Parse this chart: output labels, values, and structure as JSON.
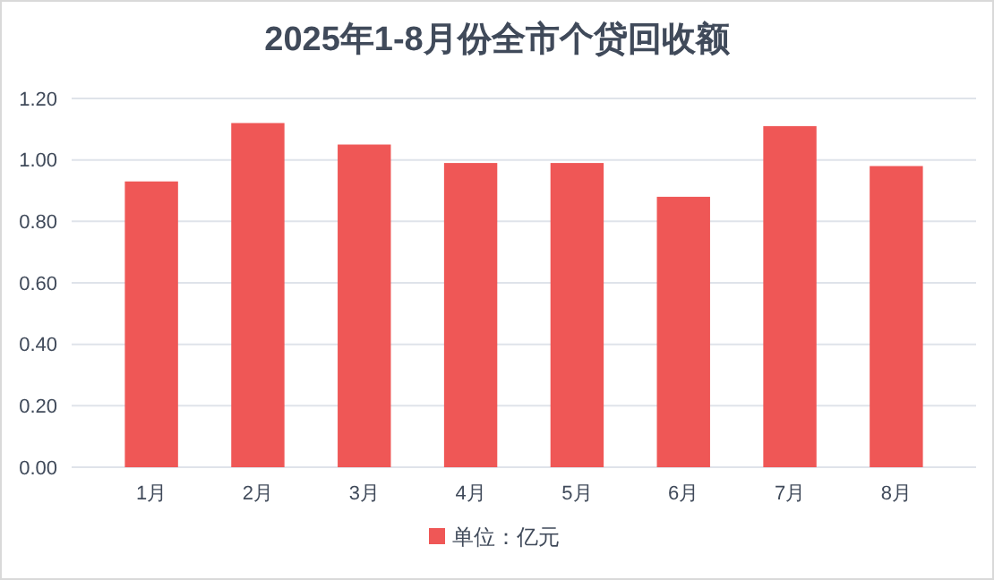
{
  "chart_data": {
    "type": "bar",
    "title": "2025年1-8月份全市个贷回收额",
    "categories": [
      "1月",
      "2月",
      "3月",
      "4月",
      "5月",
      "6月",
      "7月",
      "8月"
    ],
    "series": [
      {
        "name": "单位：亿元",
        "color": "#ef5756",
        "values": [
          0.93,
          1.12,
          1.05,
          0.99,
          0.99,
          0.88,
          1.11,
          0.98
        ]
      }
    ],
    "ylim": [
      0,
      1.2
    ],
    "yticks": [
      {
        "value": 0,
        "label": "0.00"
      },
      {
        "value": 0.2,
        "label": "0.20"
      },
      {
        "value": 0.4,
        "label": "0.40"
      },
      {
        "value": 0.6,
        "label": "0.60"
      },
      {
        "value": 0.8,
        "label": "0.80"
      },
      {
        "value": 1,
        "label": "1.00"
      },
      {
        "value": 1.2,
        "label": "1.20"
      }
    ],
    "grid": "y",
    "legend": "bottom"
  }
}
